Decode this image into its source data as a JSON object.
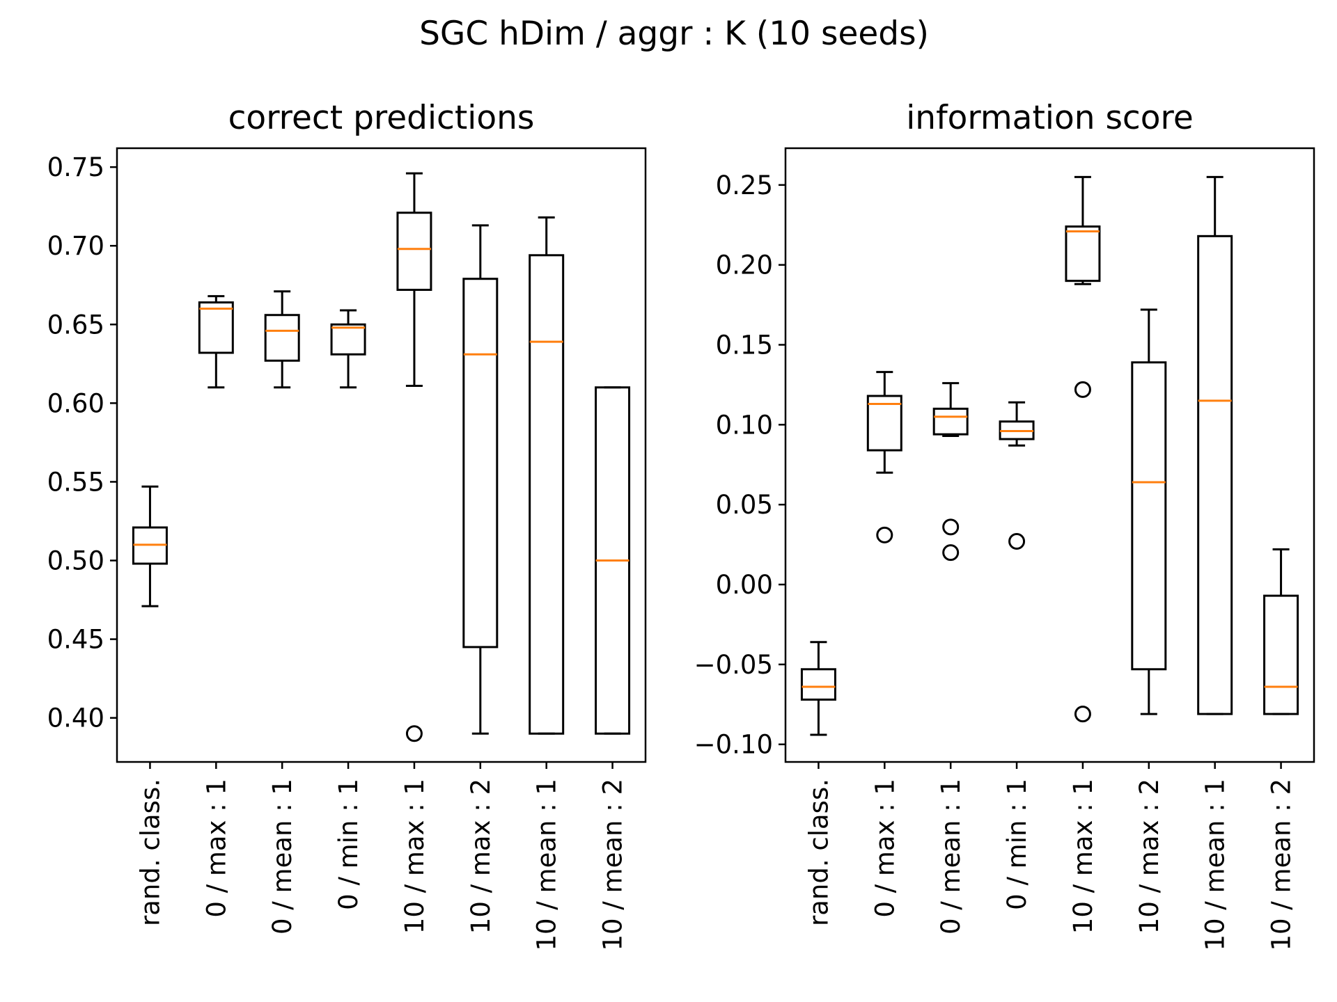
{
  "chart_data": {
    "type": "box",
    "title": "SGC hDim / aggr : K (10 seeds)",
    "categories": [
      "rand. class.",
      "0 / max : 1",
      "0 / mean : 1",
      "0 / min : 1",
      "10 / max : 1",
      "10 / max : 2",
      "10 / mean : 1",
      "10 / mean : 2"
    ],
    "colors": {
      "box": "#000000",
      "median": "#ff7f0e"
    },
    "panels": [
      {
        "title": "correct predictions",
        "ylim": [
          0.372,
          0.762
        ],
        "yticks": [
          "0.40",
          "0.45",
          "0.50",
          "0.55",
          "0.60",
          "0.65",
          "0.70",
          "0.75"
        ],
        "boxes": [
          {
            "whislo": 0.471,
            "q1": 0.498,
            "med": 0.51,
            "q3": 0.521,
            "whishi": 0.547,
            "fliers": []
          },
          {
            "whislo": 0.61,
            "q1": 0.632,
            "med": 0.66,
            "q3": 0.664,
            "whishi": 0.668,
            "fliers": []
          },
          {
            "whislo": 0.61,
            "q1": 0.627,
            "med": 0.646,
            "q3": 0.656,
            "whishi": 0.671,
            "fliers": []
          },
          {
            "whislo": 0.61,
            "q1": 0.631,
            "med": 0.648,
            "q3": 0.65,
            "whishi": 0.659,
            "fliers": []
          },
          {
            "whislo": 0.611,
            "q1": 0.672,
            "med": 0.698,
            "q3": 0.721,
            "whishi": 0.746,
            "fliers": [
              0.39
            ]
          },
          {
            "whislo": 0.39,
            "q1": 0.445,
            "med": 0.631,
            "q3": 0.679,
            "whishi": 0.713,
            "fliers": []
          },
          {
            "whislo": 0.39,
            "q1": 0.39,
            "med": 0.639,
            "q3": 0.694,
            "whishi": 0.718,
            "fliers": []
          },
          {
            "whislo": 0.39,
            "q1": 0.39,
            "med": 0.5,
            "q3": 0.61,
            "whishi": 0.61,
            "fliers": []
          }
        ]
      },
      {
        "title": "information score",
        "ylim": [
          -0.111,
          0.273
        ],
        "yticks": [
          "−0.10",
          "−0.05",
          "0.00",
          "0.05",
          "0.10",
          "0.15",
          "0.20",
          "0.25"
        ],
        "boxes": [
          {
            "whislo": -0.094,
            "q1": -0.072,
            "med": -0.064,
            "q3": -0.053,
            "whishi": -0.036,
            "fliers": []
          },
          {
            "whislo": 0.07,
            "q1": 0.084,
            "med": 0.113,
            "q3": 0.118,
            "whishi": 0.133,
            "fliers": [
              0.031
            ]
          },
          {
            "whislo": 0.093,
            "q1": 0.094,
            "med": 0.105,
            "q3": 0.11,
            "whishi": 0.126,
            "fliers": [
              0.036,
              0.02
            ]
          },
          {
            "whislo": 0.087,
            "q1": 0.091,
            "med": 0.096,
            "q3": 0.102,
            "whishi": 0.114,
            "fliers": [
              0.027
            ]
          },
          {
            "whislo": 0.188,
            "q1": 0.19,
            "med": 0.221,
            "q3": 0.224,
            "whishi": 0.255,
            "fliers": [
              0.122,
              -0.081
            ]
          },
          {
            "whislo": -0.081,
            "q1": -0.053,
            "med": 0.064,
            "q3": 0.139,
            "whishi": 0.172,
            "fliers": []
          },
          {
            "whislo": -0.081,
            "q1": -0.081,
            "med": 0.115,
            "q3": 0.218,
            "whishi": 0.255,
            "fliers": []
          },
          {
            "whislo": -0.081,
            "q1": -0.081,
            "med": -0.064,
            "q3": -0.007,
            "whishi": 0.022,
            "fliers": []
          }
        ]
      }
    ]
  }
}
